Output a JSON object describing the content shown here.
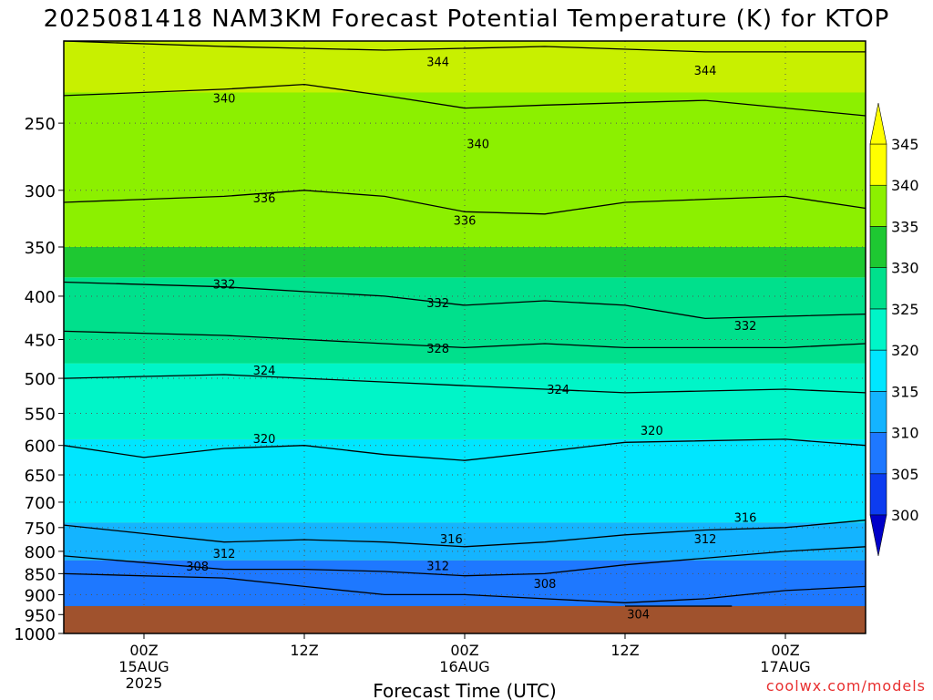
{
  "chart_data": {
    "type": "heatmap",
    "title": "2025081418 NAM3KM Forecast Potential Temperature (K) for KTOP",
    "xlabel": "Forecast Time (UTC)",
    "ylabel": "",
    "credit": "coolwx.com/models",
    "x_range_hours": [
      -6,
      54
    ],
    "y_axis": {
      "scale": "log",
      "range_hPa": [
        1000,
        200
      ],
      "ticks": [
        "250",
        "300",
        "350",
        "400",
        "450",
        "500",
        "550",
        "600",
        "650",
        "700",
        "750",
        "800",
        "850",
        "900",
        "950",
        "1000"
      ]
    },
    "x_ticks": [
      {
        "hour": 0,
        "lines": [
          "00Z",
          "15AUG",
          "2025"
        ]
      },
      {
        "hour": 12,
        "lines": [
          "12Z"
        ]
      },
      {
        "hour": 24,
        "lines": [
          "00Z",
          "16AUG"
        ]
      },
      {
        "hour": 36,
        "lines": [
          "12Z"
        ]
      },
      {
        "hour": 48,
        "lines": [
          "00Z",
          "17AUG"
        ]
      }
    ],
    "grid": true,
    "legend": {
      "position": "right",
      "levels": [
        "300",
        "305",
        "310",
        "315",
        "320",
        "325",
        "330",
        "335",
        "340",
        "345"
      ],
      "colors": [
        "#0000c8",
        "#0c3cf0",
        "#1e78ff",
        "#14b4ff",
        "#00e6ff",
        "#00f5c8",
        "#00e08c",
        "#1ec832",
        "#8cf000",
        "#ffff00"
      ]
    },
    "ground_color": "#a0522d",
    "fill_bands": [
      {
        "low": 340,
        "high": 345,
        "color": "#c8f000",
        "p_bottom": 230,
        "p_top": 200
      },
      {
        "low": 335,
        "high": 340,
        "color": "#8cf000",
        "p_bottom": 350,
        "p_top": 230
      },
      {
        "low": 330,
        "high": 335,
        "color": "#1ec832",
        "p_bottom": 380,
        "p_top": 350
      },
      {
        "low": 325,
        "high": 330,
        "color": "#00e08c",
        "p_bottom": 480,
        "p_top": 380
      },
      {
        "low": 320,
        "high": 325,
        "color": "#00f5c8",
        "p_bottom": 590,
        "p_top": 480
      },
      {
        "low": 315,
        "high": 320,
        "color": "#00e6ff",
        "p_bottom": 740,
        "p_top": 590
      },
      {
        "low": 310,
        "high": 315,
        "color": "#14b4ff",
        "p_bottom": 820,
        "p_top": 740
      },
      {
        "low": 305,
        "high": 310,
        "color": "#1e78ff",
        "p_bottom": 975,
        "p_top": 820
      }
    ],
    "contours": [
      {
        "theta": 344,
        "label": true,
        "points": [
          [
            -6,
            200
          ],
          [
            6,
            203
          ],
          [
            18,
            205
          ],
          [
            30,
            203
          ],
          [
            42,
            206
          ],
          [
            54,
            206
          ]
        ]
      },
      {
        "theta": 340,
        "label": true,
        "points": [
          [
            -6,
            232
          ],
          [
            6,
            228
          ],
          [
            12,
            225
          ],
          [
            18,
            232
          ],
          [
            24,
            240
          ],
          [
            30,
            238
          ],
          [
            42,
            235
          ],
          [
            54,
            245
          ]
        ]
      },
      {
        "theta": 336,
        "label": true,
        "points": [
          [
            -6,
            310
          ],
          [
            6,
            305
          ],
          [
            12,
            300
          ],
          [
            18,
            305
          ],
          [
            24,
            318
          ],
          [
            30,
            320
          ],
          [
            36,
            310
          ],
          [
            48,
            305
          ],
          [
            54,
            315
          ]
        ]
      },
      {
        "theta": 332,
        "label": true,
        "points": [
          [
            -6,
            385
          ],
          [
            6,
            390
          ],
          [
            12,
            395
          ],
          [
            18,
            400
          ],
          [
            24,
            410
          ],
          [
            30,
            405
          ],
          [
            36,
            410
          ],
          [
            42,
            425
          ],
          [
            54,
            420
          ]
        ]
      },
      {
        "theta": 328,
        "label": true,
        "points": [
          [
            -6,
            440
          ],
          [
            6,
            445
          ],
          [
            12,
            450
          ],
          [
            18,
            455
          ],
          [
            24,
            460
          ],
          [
            30,
            455
          ],
          [
            36,
            460
          ],
          [
            48,
            460
          ],
          [
            54,
            455
          ]
        ]
      },
      {
        "theta": 324,
        "label": true,
        "points": [
          [
            -6,
            500
          ],
          [
            6,
            495
          ],
          [
            12,
            500
          ],
          [
            18,
            505
          ],
          [
            24,
            510
          ],
          [
            30,
            515
          ],
          [
            36,
            520
          ],
          [
            48,
            515
          ],
          [
            54,
            520
          ]
        ]
      },
      {
        "theta": 320,
        "label": true,
        "points": [
          [
            -6,
            600
          ],
          [
            0,
            620
          ],
          [
            6,
            605
          ],
          [
            12,
            600
          ],
          [
            18,
            615
          ],
          [
            24,
            625
          ],
          [
            30,
            610
          ],
          [
            36,
            595
          ],
          [
            48,
            590
          ],
          [
            54,
            600
          ]
        ]
      },
      {
        "theta": 316,
        "label": true,
        "points": [
          [
            -6,
            745
          ],
          [
            6,
            780
          ],
          [
            12,
            775
          ],
          [
            18,
            780
          ],
          [
            24,
            790
          ],
          [
            30,
            780
          ],
          [
            36,
            765
          ],
          [
            42,
            755
          ],
          [
            48,
            750
          ],
          [
            54,
            735
          ]
        ]
      },
      {
        "theta": 312,
        "label": true,
        "points": [
          [
            -6,
            810
          ],
          [
            6,
            840
          ],
          [
            12,
            840
          ],
          [
            18,
            845
          ],
          [
            24,
            855
          ],
          [
            30,
            850
          ],
          [
            36,
            830
          ],
          [
            42,
            815
          ],
          [
            48,
            800
          ],
          [
            54,
            790
          ]
        ]
      },
      {
        "theta": 308,
        "label": true,
        "points": [
          [
            -6,
            850
          ],
          [
            6,
            860
          ],
          [
            12,
            880
          ],
          [
            18,
            900
          ],
          [
            24,
            900
          ],
          [
            30,
            910
          ],
          [
            36,
            920
          ],
          [
            42,
            910
          ],
          [
            48,
            890
          ],
          [
            54,
            880
          ]
        ]
      },
      {
        "theta": 304,
        "label": true,
        "points": [
          [
            36,
            955
          ],
          [
            40,
            950
          ],
          [
            44,
            960
          ]
        ]
      }
    ],
    "contour_labels": [
      {
        "text": "344",
        "hour": 22,
        "p": 212
      },
      {
        "text": "344",
        "hour": 42,
        "p": 217
      },
      {
        "text": "340",
        "hour": 6,
        "p": 234
      },
      {
        "text": "340",
        "hour": 25,
        "p": 265
      },
      {
        "text": "336",
        "hour": 9,
        "p": 307
      },
      {
        "text": "336",
        "hour": 24,
        "p": 326
      },
      {
        "text": "332",
        "hour": 6,
        "p": 388
      },
      {
        "text": "332",
        "hour": 22,
        "p": 408
      },
      {
        "text": "332",
        "hour": 45,
        "p": 434
      },
      {
        "text": "328",
        "hour": 22,
        "p": 462
      },
      {
        "text": "324",
        "hour": 9,
        "p": 490
      },
      {
        "text": "324",
        "hour": 31,
        "p": 516
      },
      {
        "text": "320",
        "hour": 9,
        "p": 590
      },
      {
        "text": "320",
        "hour": 38,
        "p": 577
      },
      {
        "text": "316",
        "hour": 45,
        "p": 731
      },
      {
        "text": "316",
        "hour": 23,
        "p": 775
      },
      {
        "text": "312",
        "hour": 42,
        "p": 775
      },
      {
        "text": "312",
        "hour": 6,
        "p": 806
      },
      {
        "text": "312",
        "hour": 22,
        "p": 834
      },
      {
        "text": "308",
        "hour": 4,
        "p": 835
      },
      {
        "text": "308",
        "hour": 30,
        "p": 875
      },
      {
        "text": "304",
        "hour": 37,
        "p": 950
      }
    ]
  }
}
